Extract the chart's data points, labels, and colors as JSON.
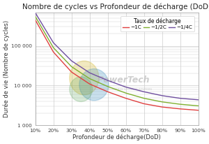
{
  "title": "Nombre de cycles vs Profondeur de décharge (DoD)",
  "xlabel": "Profondeur de décharge(DoD)",
  "ylabel": "Durée de vie (Nombre de cycles)",
  "legend_title": "Taux de décharge",
  "legend_labels": [
    "−1C",
    "−1/2C",
    "−1/4C"
  ],
  "line_colors": [
    "#e04040",
    "#80b030",
    "#7050a0"
  ],
  "dod_values": [
    0.1,
    0.2,
    0.3,
    0.4,
    0.5,
    0.6,
    0.7,
    0.8,
    0.9,
    1.0
  ],
  "cycles_1C": [
    450000,
    70000,
    22000,
    11000,
    7000,
    4800,
    3500,
    2900,
    2600,
    2400
  ],
  "cycles_half": [
    550000,
    90000,
    30000,
    15000,
    9500,
    6500,
    4800,
    3900,
    3400,
    3100
  ],
  "cycles_quarter": [
    680000,
    120000,
    42000,
    21000,
    13500,
    9200,
    7000,
    5600,
    4800,
    4400
  ],
  "ylim": [
    1000,
    700000
  ],
  "yticks": [
    1000,
    10000,
    100000
  ],
  "ytick_labels": [
    "1 000",
    "10 000",
    "100 000"
  ],
  "xtick_labels": [
    "10%",
    "20%",
    "30%",
    "40%",
    "50%",
    "60%",
    "70%",
    "80%",
    "90%",
    "100%"
  ],
  "bg_color": "#ffffff",
  "plot_bg_color": "#ffffff",
  "grid_color": "#cccccc",
  "title_fontsize": 7.5,
  "axis_label_fontsize": 6.0,
  "tick_fontsize": 5.2,
  "legend_fontsize": 5.2,
  "legend_title_fontsize": 5.5
}
